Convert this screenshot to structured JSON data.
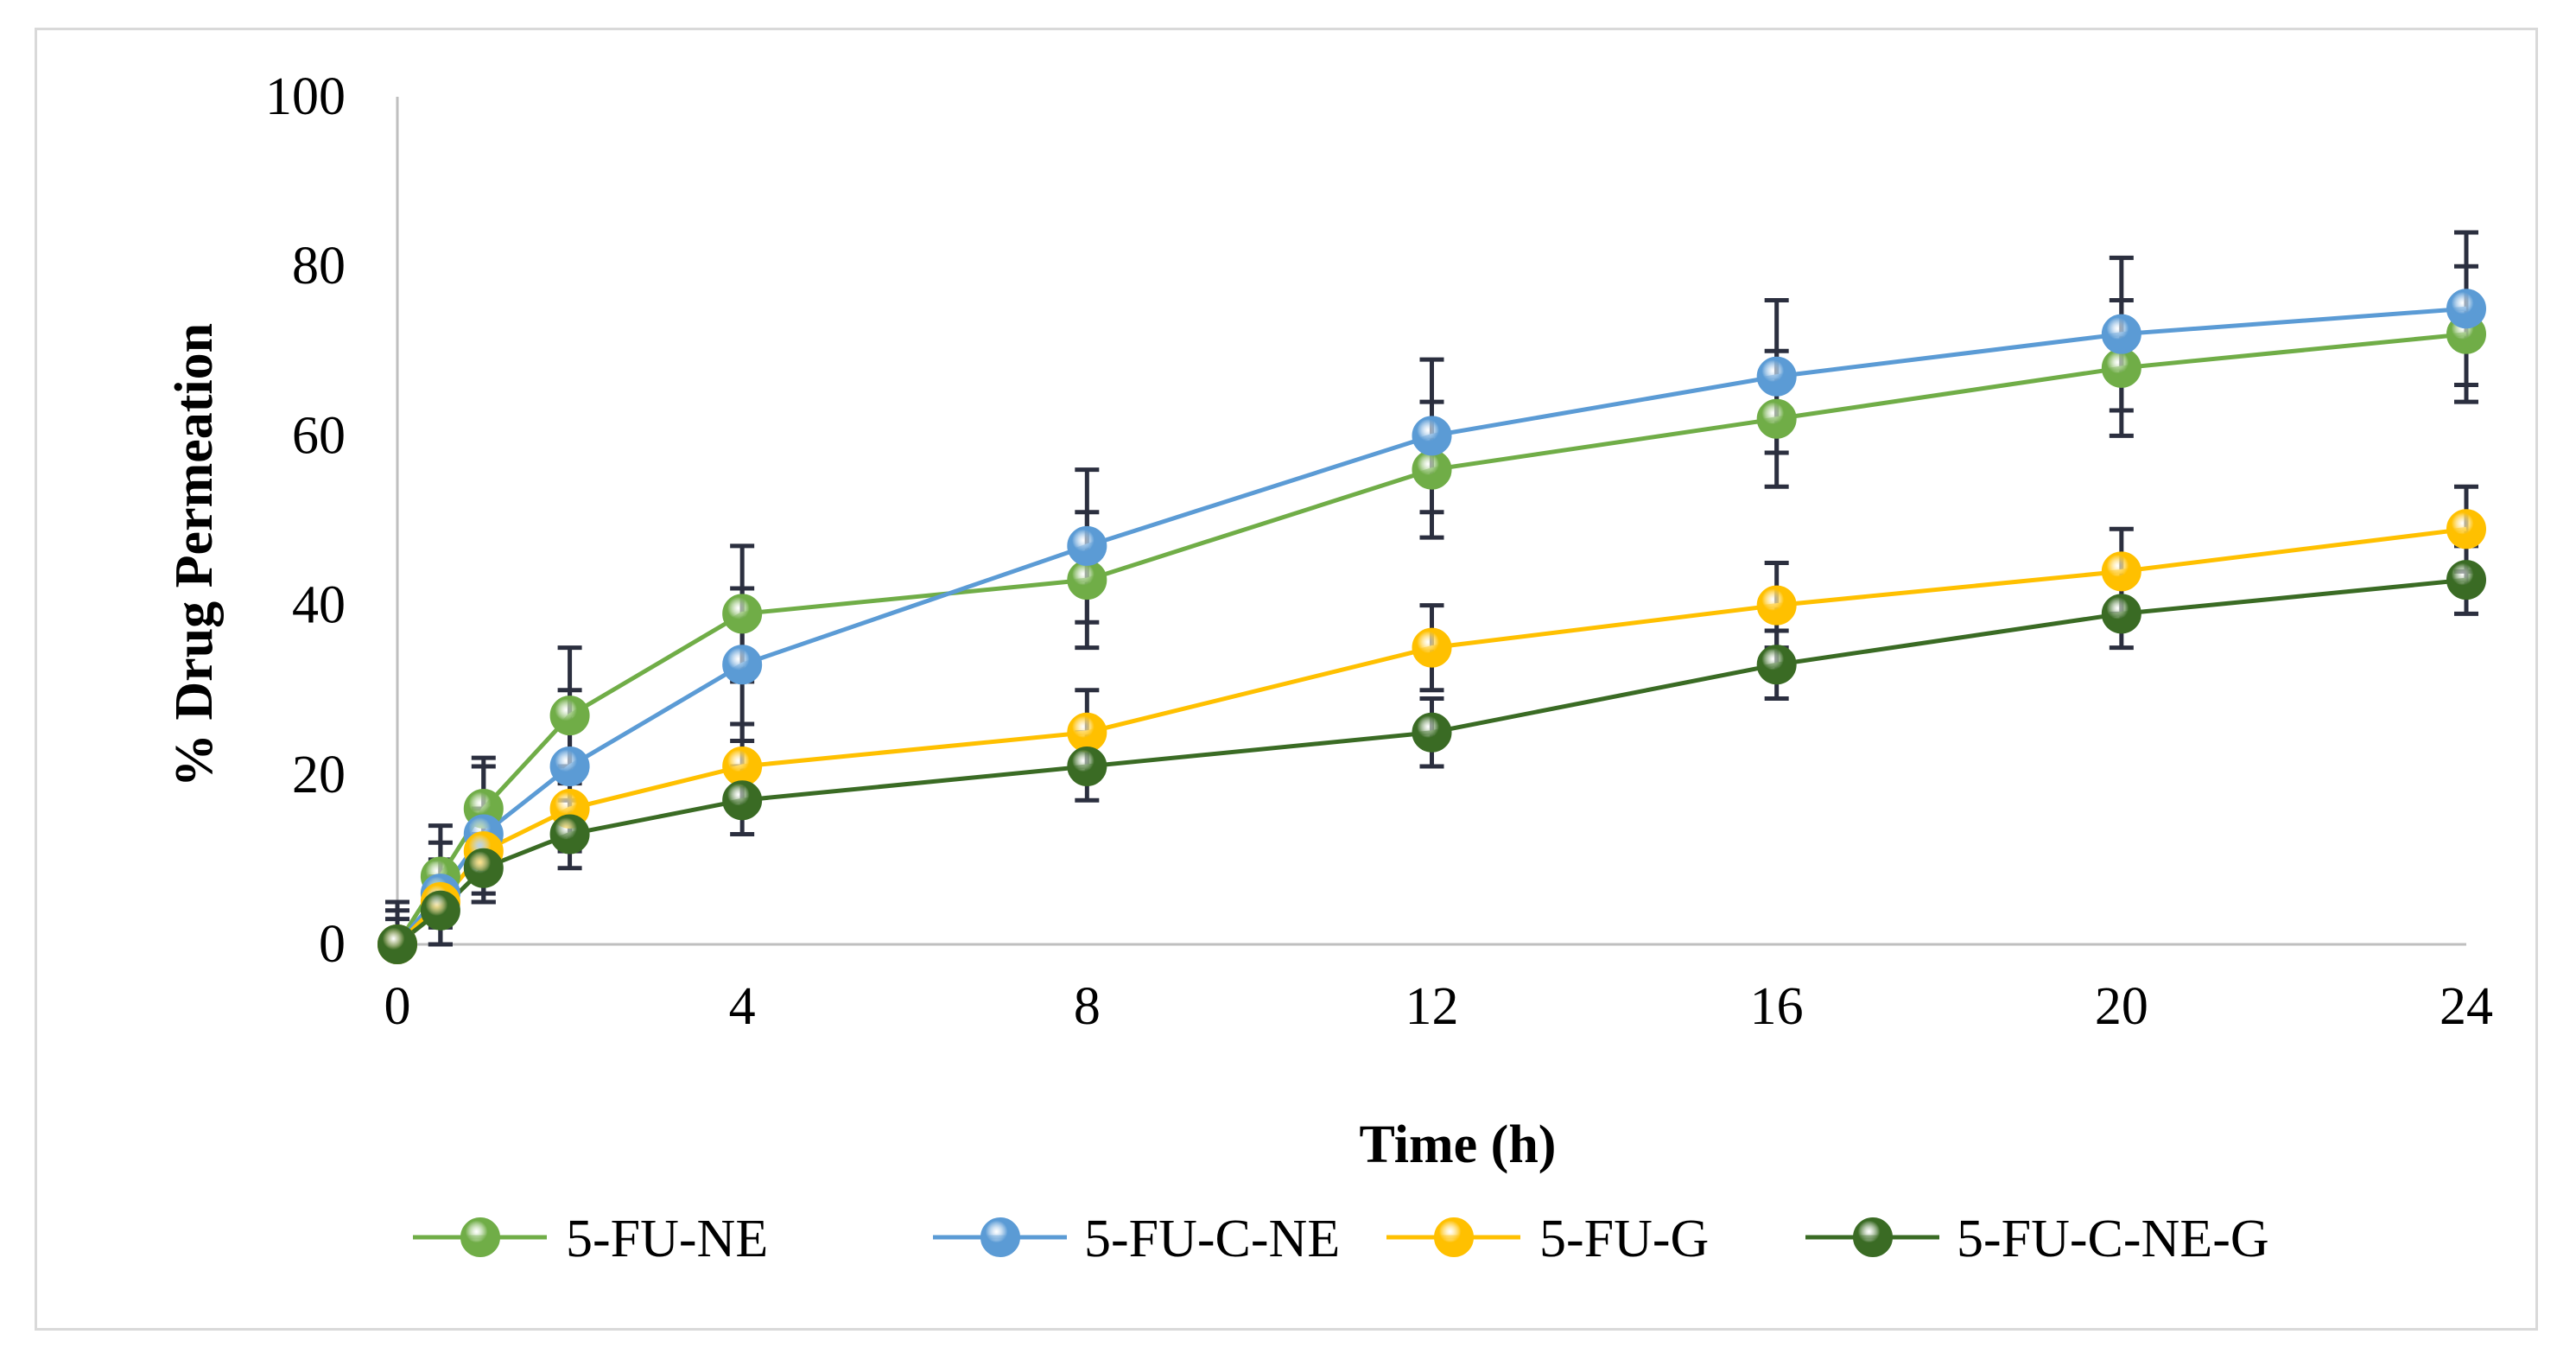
{
  "chart_data": {
    "type": "line",
    "title": "",
    "xlabel": "Time (h)",
    "ylabel": "% Drug Permeation",
    "xlim": [
      0,
      24
    ],
    "ylim": [
      0,
      100
    ],
    "x_ticks": [
      0,
      4,
      8,
      12,
      16,
      20,
      24
    ],
    "y_ticks": [
      0,
      20,
      40,
      60,
      80,
      100
    ],
    "x_tick_labels": [
      "0",
      "4",
      "8",
      "12",
      "16",
      "20",
      "24"
    ],
    "y_tick_labels": [
      "0",
      "20",
      "40",
      "60",
      "80",
      "100"
    ],
    "x": [
      0,
      0.5,
      1,
      2,
      4,
      8,
      12,
      16,
      20,
      24
    ],
    "grid": false,
    "legend_position": "bottom",
    "series": [
      {
        "name": "5-FU-NE",
        "color": "#70ad47",
        "values": [
          0,
          8,
          16,
          27,
          39,
          43,
          56,
          62,
          68,
          72
        ],
        "errors": [
          5,
          6,
          6,
          8,
          8,
          8,
          8,
          8,
          8,
          8
        ]
      },
      {
        "name": "5-FU-C-NE",
        "color": "#5b9bd5",
        "values": [
          0,
          6,
          13,
          21,
          33,
          47,
          60,
          67,
          72,
          75
        ],
        "errors": [
          5,
          6,
          8,
          9,
          9,
          9,
          9,
          9,
          9,
          9
        ]
      },
      {
        "name": "5-FU-G",
        "color": "#ffc000",
        "values": [
          0,
          5,
          11,
          16,
          21,
          25,
          35,
          40,
          44,
          49
        ],
        "errors": [
          4,
          5,
          5,
          5,
          5,
          5,
          5,
          5,
          5,
          5
        ]
      },
      {
        "name": "5-FU-C-NE-G",
        "color": "#3a6b24",
        "values": [
          0,
          4,
          9,
          13,
          17,
          21,
          25,
          33,
          39,
          43
        ],
        "errors": [
          3,
          4,
          4,
          4,
          4,
          4,
          4,
          4,
          4,
          4
        ]
      }
    ]
  }
}
